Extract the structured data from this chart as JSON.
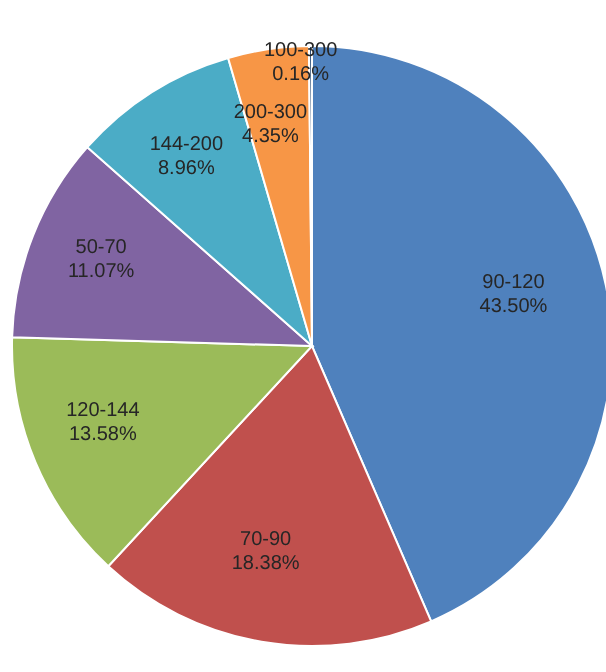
{
  "chart_data": {
    "type": "pie",
    "categories": [
      "90-120",
      "70-90",
      "120-144",
      "50-70",
      "144-200",
      "200-300",
      "100-300"
    ],
    "values": [
      43.5,
      18.38,
      13.58,
      11.07,
      8.96,
      4.35,
      0.16
    ],
    "colors": [
      "#4f81bd",
      "#c0504d",
      "#9bbb59",
      "#8064a2",
      "#4bacc6",
      "#f79646",
      "#2c4d75"
    ],
    "value_labels": [
      "43.50%",
      "18.38%",
      "13.58%",
      "11.07%",
      "8.96%",
      "4.35%",
      "0.16%"
    ],
    "legend": false
  }
}
